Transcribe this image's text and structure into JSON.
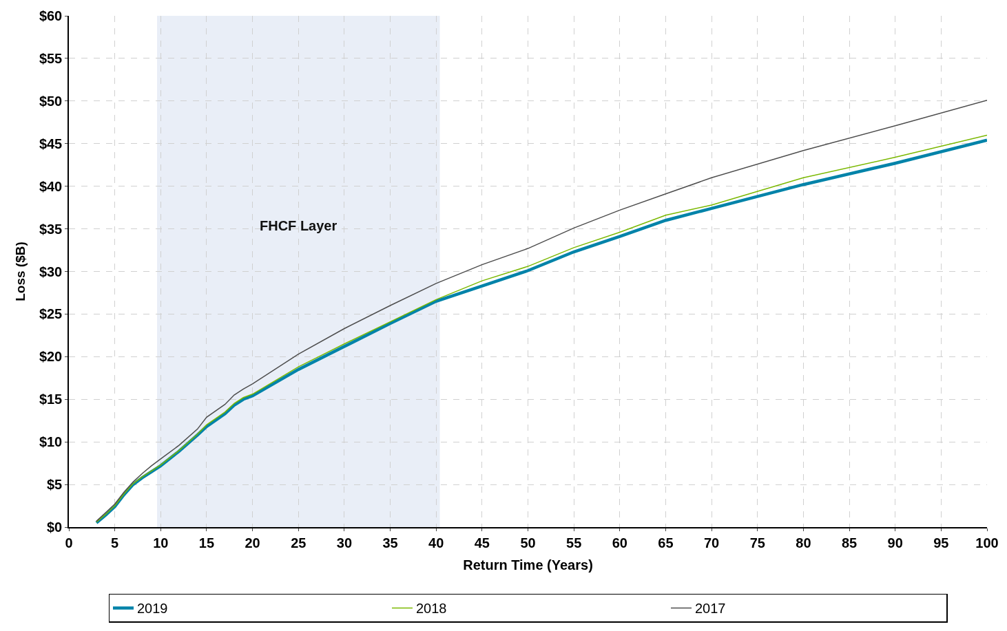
{
  "chart_data": {
    "type": "line",
    "xlabel": "Return Time (Years)",
    "ylabel": "Loss ($B)",
    "x": [
      3,
      4,
      5,
      6,
      7,
      8,
      9,
      10,
      12,
      14,
      15,
      17,
      18,
      19,
      20,
      25,
      30,
      35,
      40,
      45,
      50,
      55,
      60,
      65,
      70,
      80,
      90,
      100
    ],
    "series": [
      {
        "name": "2019",
        "color": "#0083a9",
        "values": [
          0.5,
          1.4,
          2.4,
          3.8,
          5.0,
          5.8,
          6.5,
          7.2,
          8.9,
          10.8,
          11.8,
          13.3,
          14.3,
          15.0,
          15.4,
          18.5,
          21.2,
          23.9,
          26.5,
          28.3,
          30.1,
          32.3,
          34.1,
          36.0,
          37.4,
          40.2,
          42.7,
          45.4
        ]
      },
      {
        "name": "2018",
        "color": "#7ab800",
        "values": [
          0.6,
          1.5,
          2.5,
          3.9,
          5.1,
          5.9,
          6.6,
          7.3,
          9.0,
          10.9,
          12.0,
          13.5,
          14.5,
          15.2,
          15.6,
          18.8,
          21.5,
          24.1,
          26.7,
          28.9,
          30.6,
          32.8,
          34.6,
          36.6,
          37.8,
          41.0,
          43.4,
          46.0
        ]
      },
      {
        "name": "2017",
        "color": "#4d4d4d",
        "values": [
          0.7,
          1.7,
          2.7,
          4.1,
          5.3,
          6.3,
          7.2,
          8.0,
          9.6,
          11.5,
          12.9,
          14.4,
          15.5,
          16.2,
          16.8,
          20.3,
          23.3,
          26.0,
          28.6,
          30.8,
          32.7,
          35.1,
          37.2,
          39.1,
          41.0,
          44.2,
          47.1,
          50.1
        ]
      }
    ],
    "xlim": [
      0,
      100
    ],
    "xticks": [
      0,
      5,
      10,
      15,
      20,
      25,
      30,
      35,
      40,
      45,
      50,
      55,
      60,
      65,
      70,
      75,
      80,
      85,
      90,
      95,
      100
    ],
    "ylim": [
      0,
      60
    ],
    "yticks": [
      {
        "value": 0,
        "label": "$0"
      },
      {
        "value": 5,
        "label": "$5"
      },
      {
        "value": 10,
        "label": "$10"
      },
      {
        "value": 15,
        "label": "$15"
      },
      {
        "value": 20,
        "label": "$20"
      },
      {
        "value": 25,
        "label": "$25"
      },
      {
        "value": 30,
        "label": "$30"
      },
      {
        "value": 35,
        "label": "$35"
      },
      {
        "value": 40,
        "label": "$40"
      },
      {
        "value": 45,
        "label": "$45"
      },
      {
        "value": 50,
        "label": "$50"
      },
      {
        "value": 55,
        "label": "$55"
      },
      {
        "value": 60,
        "label": "$60"
      }
    ],
    "bands": [
      {
        "axis": "x",
        "from": 9.6,
        "to": 40.4,
        "label": "FHCF Layer",
        "color": "#e9eef7"
      }
    ],
    "grid": true,
    "legend": "bottom",
    "line_style": "solid",
    "marker": "none"
  }
}
